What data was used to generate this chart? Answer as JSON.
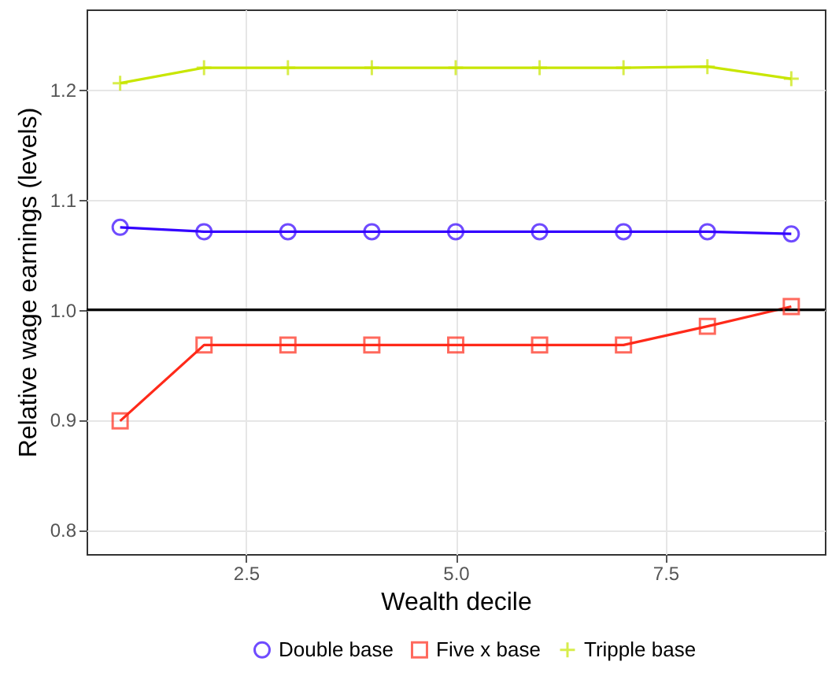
{
  "chart_data": {
    "type": "line",
    "xlabel": "Wealth decile",
    "ylabel": "Relative wage earnings (levels)",
    "x": [
      1,
      2,
      3,
      4,
      5,
      6,
      7,
      8,
      9
    ],
    "series": [
      {
        "name": "Double base",
        "color": "#3300ff",
        "marker": "circle",
        "values": [
          1.075,
          1.071,
          1.071,
          1.071,
          1.071,
          1.071,
          1.071,
          1.071,
          1.069
        ]
      },
      {
        "name": "Five x base",
        "color": "#ff2a1a",
        "marker": "square",
        "values": [
          0.899,
          0.968,
          0.968,
          0.968,
          0.968,
          0.968,
          0.968,
          0.985,
          1.003
        ]
      },
      {
        "name": "Tripple base",
        "color": "#c8e600",
        "marker": "cross",
        "values": [
          1.206,
          1.22,
          1.22,
          1.22,
          1.22,
          1.22,
          1.22,
          1.221,
          1.21
        ]
      }
    ],
    "xlim": [
      0.6,
      9.4
    ],
    "ylim": [
      0.778,
      1.273
    ],
    "xticks": [
      {
        "value": 2.5,
        "label": "2.5"
      },
      {
        "value": 5,
        "label": "5.0"
      },
      {
        "value": 7.5,
        "label": "7.5"
      }
    ],
    "yticks": [
      {
        "value": 0.8,
        "label": "0.8"
      },
      {
        "value": 0.9,
        "label": "0.9"
      },
      {
        "value": 1,
        "label": "1.0"
      },
      {
        "value": 1.1,
        "label": "1.1"
      },
      {
        "value": 1.2,
        "label": "1.2"
      }
    ],
    "ref_lines": [
      {
        "axis": "y",
        "value": 1,
        "color": "#000000"
      }
    ],
    "grid": true,
    "legend": "bottom",
    "line_style": "solid"
  }
}
